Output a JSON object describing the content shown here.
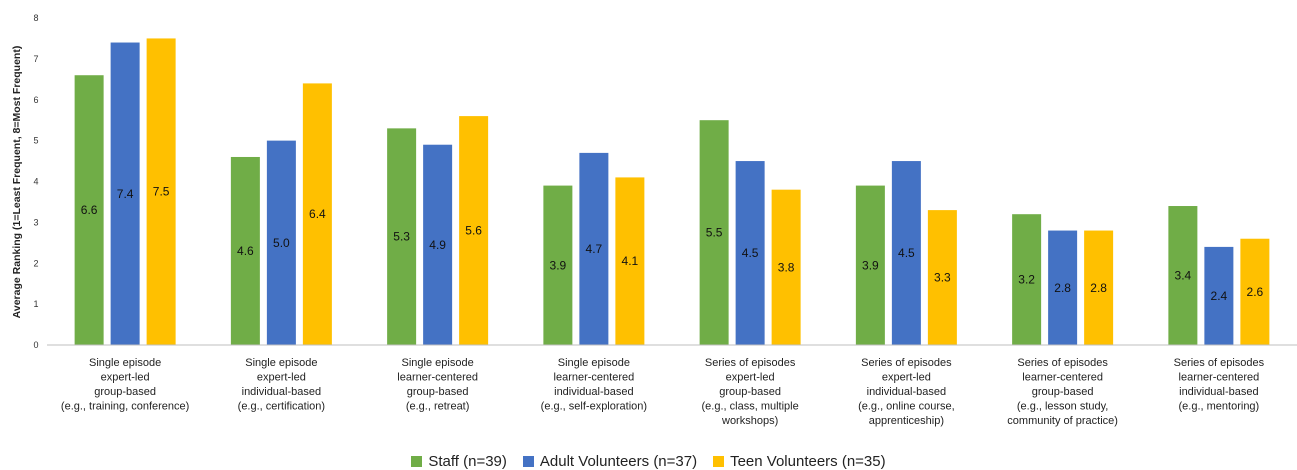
{
  "chart_data": {
    "type": "bar",
    "ylabel": "Average Ranking (1=Least Frequent, 8=Most Frequent)",
    "xlabel": "",
    "ylim": [
      0,
      8
    ],
    "yticks": [
      0,
      1,
      2,
      3,
      4,
      5,
      6,
      7,
      8
    ],
    "grid": false,
    "legend_position": "bottom",
    "categories": [
      [
        "Single episode",
        "expert-led",
        "group-based",
        "(e.g., training, conference)"
      ],
      [
        "Single episode",
        "expert-led",
        "individual-based",
        "(e.g., certification)"
      ],
      [
        "Single episode",
        "learner-centered",
        "group-based",
        "(e.g., retreat)"
      ],
      [
        "Single episode",
        "learner-centered",
        "individual-based",
        "(e.g., self-exploration)"
      ],
      [
        "Series of episodes",
        "expert-led",
        "group-based",
        "(e.g., class, multiple",
        "workshops)"
      ],
      [
        "Series of episodes",
        "expert-led",
        "individual-based",
        "(e.g., online course,",
        "apprenticeship)"
      ],
      [
        "Series of episodes",
        "learner-centered",
        "group-based",
        "(e.g., lesson study,",
        "community of practice)"
      ],
      [
        "Series of episodes",
        "learner-centered",
        "individual-based",
        "(e.g., mentoring)"
      ]
    ],
    "series": [
      {
        "name": "Staff (n=39)",
        "color": "#70AD47",
        "values": [
          6.6,
          4.6,
          5.3,
          3.9,
          5.5,
          3.9,
          3.2,
          3.4
        ],
        "labels": [
          "6.6",
          "4.6",
          "5.3",
          "3.9",
          "5.5",
          "3.9",
          "3.2",
          "3.4"
        ]
      },
      {
        "name": "Adult Volunteers (n=37)",
        "color": "#4472C4",
        "values": [
          7.4,
          5.0,
          4.9,
          4.7,
          4.5,
          4.5,
          2.8,
          2.4
        ],
        "labels": [
          "7.4",
          "5.0",
          "4.9",
          "4.7",
          "4.5",
          "4.5",
          "2.8",
          "2.4"
        ]
      },
      {
        "name": "Teen Volunteers (n=35)",
        "color": "#FFC000",
        "values": [
          7.5,
          6.4,
          5.6,
          4.1,
          3.8,
          3.3,
          2.8,
          2.6
        ],
        "labels": [
          "7.5",
          "6.4",
          "5.6",
          "4.1",
          "3.8",
          "3.3",
          "2.8",
          "2.6"
        ]
      }
    ]
  }
}
